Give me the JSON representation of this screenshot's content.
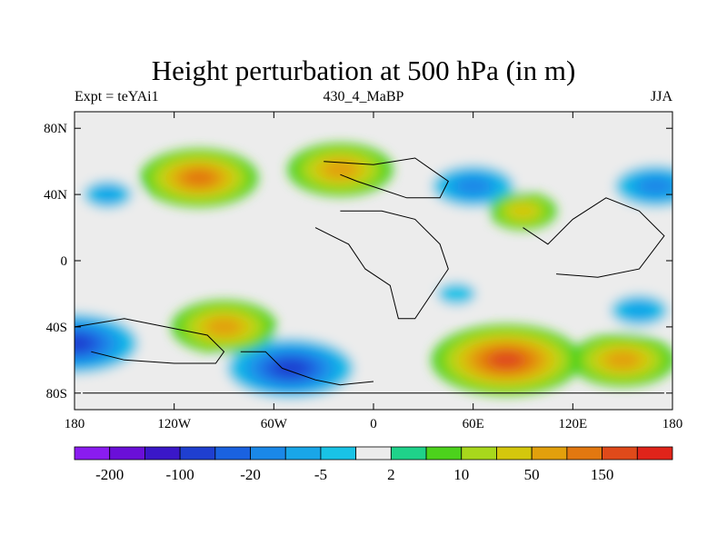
{
  "title": "Height perturbation at 500 hPa (in m)",
  "subtitle_left": "Expt = teYAi1",
  "subtitle_center": "430_4_MaBP",
  "subtitle_right": "JJA",
  "lat_ticks": [
    "80N",
    "40N",
    "0",
    "40S",
    "80S"
  ],
  "lon_ticks": [
    "180",
    "120W",
    "60W",
    "0",
    "60E",
    "120E",
    "180"
  ],
  "colorbar": {
    "colors": [
      "#8a1cf0",
      "#6a0fd8",
      "#3a17c8",
      "#1f3fd0",
      "#1a62e0",
      "#1a88e8",
      "#19a6e8",
      "#19c3e6",
      "#ececec",
      "#1fd28a",
      "#4cd21c",
      "#a8d81c",
      "#d4c70c",
      "#e2a00c",
      "#e27810",
      "#e04a1a",
      "#e0241a"
    ],
    "labels": [
      "-200",
      "-100",
      "-20",
      "-5",
      "2",
      "10",
      "50",
      "150"
    ]
  },
  "chart_data": {
    "type": "heatmap",
    "title": "Height perturbation at 500 hPa (in m)",
    "x_range": [
      -180,
      180
    ],
    "y_range": [
      -90,
      90
    ],
    "x_ticks": [
      "180",
      "120W",
      "60W",
      "0",
      "60E",
      "120E",
      "180"
    ],
    "y_ticks": [
      "80N",
      "40N",
      "0",
      "40S",
      "80S"
    ],
    "levels": [
      "-200",
      "-100",
      "-20",
      "-5",
      "2",
      "10",
      "50",
      "150"
    ],
    "features": [
      {
        "lon": -105,
        "lat": 50,
        "value": 100
      },
      {
        "lon": -20,
        "lat": 55,
        "value": 80
      },
      {
        "lon": 60,
        "lat": 45,
        "value": -80
      },
      {
        "lon": 170,
        "lat": 45,
        "value": -80
      },
      {
        "lon": 90,
        "lat": 30,
        "value": 20
      },
      {
        "lon": -160,
        "lat": 40,
        "value": -20
      },
      {
        "lon": -180,
        "lat": -50,
        "value": -150
      },
      {
        "lon": -50,
        "lat": -65,
        "value": -150
      },
      {
        "lon": -90,
        "lat": -40,
        "value": 80
      },
      {
        "lon": 80,
        "lat": -60,
        "value": 150
      },
      {
        "lon": 150,
        "lat": -60,
        "value": 80
      },
      {
        "lon": 50,
        "lat": -20,
        "value": -15
      },
      {
        "lon": 160,
        "lat": -30,
        "value": -40
      },
      {
        "lon": -170,
        "lat": -15,
        "value": -5
      }
    ]
  }
}
